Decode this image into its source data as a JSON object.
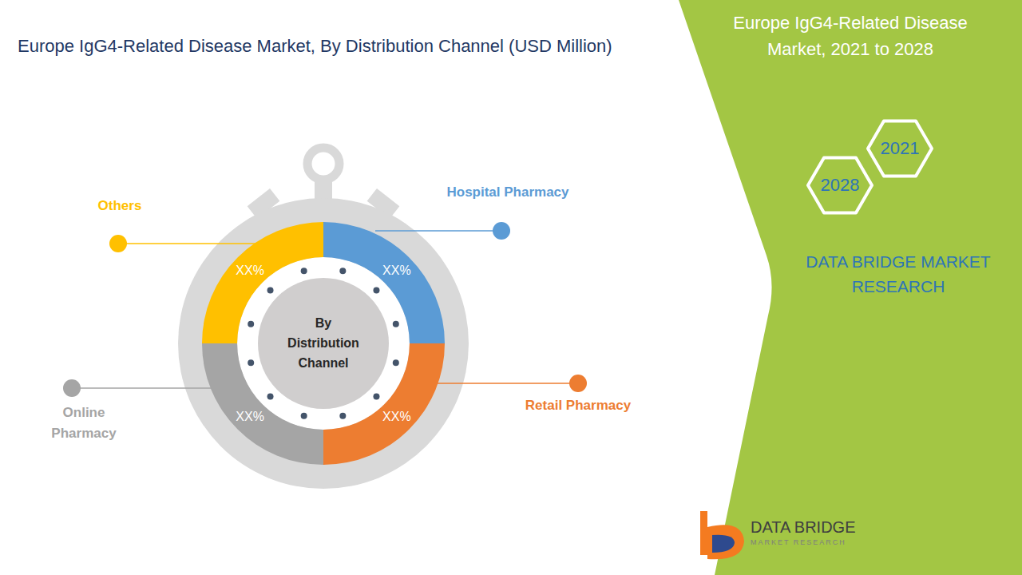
{
  "chart_data": {
    "type": "pie",
    "title": "Europe IgG4-Related Disease Market, By Distribution Channel (USD Million)",
    "center_label": "By Distribution Channel",
    "categories": [
      "Hospital Pharmacy",
      "Retail Pharmacy",
      "Online Pharmacy",
      "Others"
    ],
    "values": [
      25,
      25,
      25,
      25
    ],
    "value_labels": [
      "XX%",
      "XX%",
      "XX%",
      "XX%"
    ],
    "colors": [
      "#5B9BD5",
      "#ED7D31",
      "#A5A5A5",
      "#FFC000"
    ],
    "data_labels": true
  },
  "panel": {
    "title": "Europe IgG4-Related Disease Market, 2021 to 2028",
    "years": [
      "2021",
      "2028"
    ],
    "brand": "DATA BRIDGE MARKET RESEARCH"
  },
  "logo": {
    "name": "DATA BRIDGE",
    "tagline": "MARKET RESEARCH"
  }
}
